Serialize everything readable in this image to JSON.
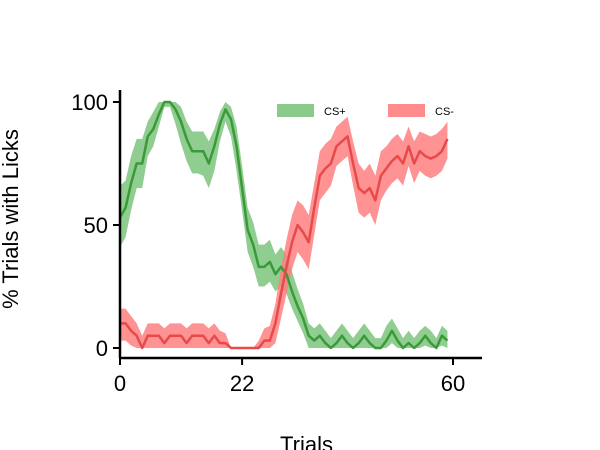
{
  "chart_data": {
    "type": "line",
    "xlabel": "Trials",
    "ylabel": "% Trials with Licks",
    "xlim": [
      0,
      65
    ],
    "ylim": [
      -5,
      105
    ],
    "xticks": [
      0,
      22,
      60
    ],
    "yticks": [
      0,
      50,
      100
    ],
    "grid": false,
    "legend_position": "top-right",
    "series": [
      {
        "name": "CS+",
        "color": "#3a9a3a",
        "band_color": "#7dc47d",
        "x": [
          0,
          1,
          2,
          3,
          4,
          5,
          6,
          7,
          8,
          9,
          10,
          11,
          12,
          13,
          14,
          15,
          16,
          17,
          18,
          19,
          20,
          21,
          22,
          23,
          24,
          25,
          26,
          27,
          28,
          29,
          30,
          31,
          32,
          33,
          34,
          35,
          36,
          37,
          38,
          39,
          40,
          41,
          42,
          43,
          44,
          45,
          46,
          47,
          48,
          49,
          50,
          51,
          52,
          53,
          54,
          55,
          56,
          57,
          58,
          59
        ],
        "mean": [
          53,
          57,
          67,
          75,
          75,
          86,
          89,
          95,
          100,
          100,
          97,
          92,
          85,
          80,
          80,
          80,
          75,
          82,
          91,
          97,
          93,
          82,
          65,
          48,
          42,
          33,
          33,
          35,
          30,
          33,
          30,
          23,
          17,
          12,
          5,
          3,
          5,
          2,
          0,
          2,
          5,
          2,
          0,
          2,
          5,
          2,
          0,
          0,
          3,
          7,
          3,
          0,
          2,
          0,
          2,
          5,
          2,
          0,
          5,
          3
        ],
        "lower": [
          41,
          45,
          56,
          65,
          65,
          78,
          82,
          90,
          98,
          98,
          91,
          83,
          76,
          71,
          71,
          70,
          65,
          72,
          84,
          92,
          86,
          72,
          56,
          39,
          33,
          25,
          25,
          27,
          23,
          25,
          22,
          16,
          11,
          6,
          0,
          0,
          0,
          0,
          0,
          0,
          0,
          0,
          0,
          0,
          0,
          0,
          0,
          0,
          0,
          2,
          0,
          0,
          0,
          0,
          0,
          1,
          0,
          0,
          1,
          0
        ],
        "upper": [
          66,
          68,
          78,
          85,
          85,
          92,
          96,
          100,
          100,
          100,
          100,
          98,
          92,
          88,
          88,
          88,
          84,
          89,
          96,
          100,
          98,
          90,
          74,
          57,
          51,
          42,
          42,
          44,
          38,
          41,
          38,
          31,
          24,
          18,
          10,
          8,
          10,
          7,
          4,
          7,
          10,
          7,
          4,
          7,
          10,
          7,
          4,
          4,
          9,
          12,
          8,
          4,
          7,
          4,
          7,
          9,
          7,
          4,
          9,
          7
        ]
      },
      {
        "name": "CS-",
        "color": "#e64a4a",
        "band_color": "#ff7f7f",
        "x": [
          0,
          1,
          2,
          3,
          4,
          5,
          6,
          7,
          8,
          9,
          10,
          11,
          12,
          13,
          14,
          15,
          16,
          17,
          18,
          19,
          20,
          21,
          22,
          23,
          24,
          25,
          26,
          27,
          28,
          29,
          30,
          31,
          32,
          33,
          34,
          35,
          36,
          37,
          38,
          39,
          40,
          41,
          42,
          43,
          44,
          45,
          46,
          47,
          48,
          49,
          50,
          51,
          52,
          53,
          54,
          55,
          56,
          57,
          58,
          59
        ],
        "mean": [
          10,
          10,
          7,
          5,
          0,
          5,
          5,
          5,
          2,
          5,
          5,
          5,
          2,
          5,
          5,
          5,
          2,
          5,
          2,
          2,
          0,
          0,
          0,
          0,
          0,
          0,
          3,
          3,
          10,
          22,
          33,
          43,
          50,
          47,
          43,
          57,
          70,
          73,
          75,
          82,
          84,
          86,
          75,
          65,
          63,
          65,
          60,
          70,
          73,
          76,
          78,
          75,
          82,
          75,
          80,
          78,
          77,
          78,
          80,
          85
        ],
        "lower": [
          3,
          3,
          1,
          0,
          0,
          0,
          0,
          0,
          0,
          0,
          0,
          0,
          0,
          0,
          0,
          0,
          0,
          0,
          0,
          0,
          0,
          0,
          0,
          0,
          0,
          0,
          0,
          0,
          2,
          12,
          22,
          32,
          39,
          36,
          32,
          46,
          60,
          63,
          66,
          74,
          76,
          78,
          66,
          55,
          53,
          55,
          50,
          60,
          64,
          67,
          69,
          66,
          74,
          67,
          72,
          70,
          69,
          70,
          72,
          77
        ],
        "upper": [
          16,
          16,
          13,
          10,
          5,
          10,
          10,
          10,
          8,
          10,
          10,
          10,
          8,
          10,
          10,
          10,
          8,
          10,
          7,
          6,
          0,
          0,
          0,
          0,
          0,
          3,
          8,
          9,
          18,
          32,
          44,
          54,
          60,
          58,
          54,
          67,
          80,
          83,
          85,
          90,
          92,
          94,
          84,
          75,
          72,
          75,
          70,
          80,
          82,
          85,
          87,
          84,
          90,
          84,
          88,
          87,
          86,
          87,
          89,
          92
        ]
      }
    ]
  }
}
